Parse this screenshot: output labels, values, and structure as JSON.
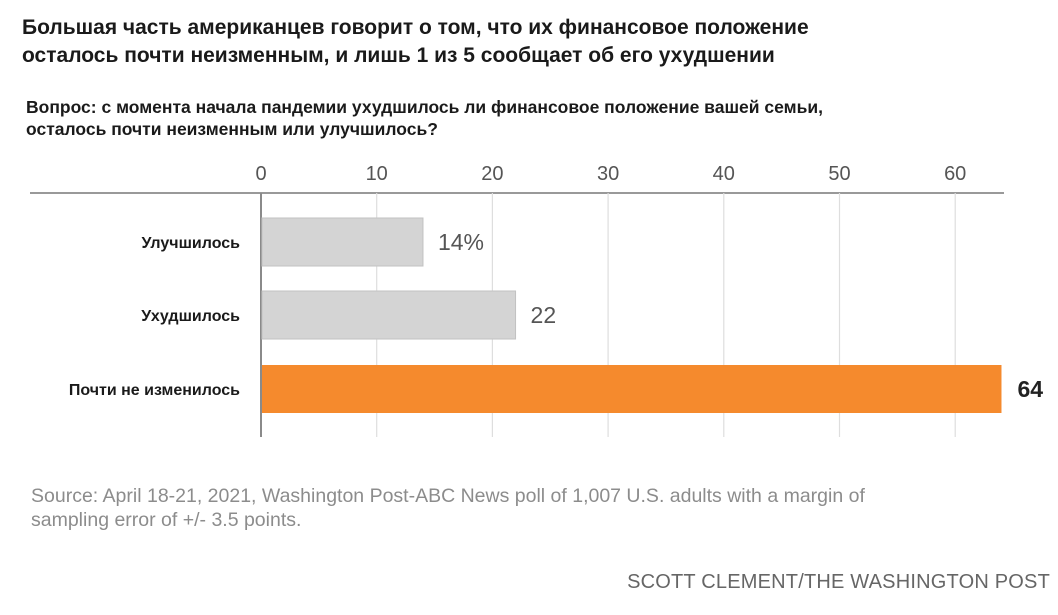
{
  "title_lines": [
    "Большая часть американцев говорит о том, что их финансовое положение",
    "осталось почти неизменным, и лишь 1 из 5 сообщает об его ухудшении"
  ],
  "question_lines": [
    "Вопрос: с момента начала пандемии ухудшилось ли финансовое положение вашей семьи,",
    "осталось почти неизменным или улучшилось?"
  ],
  "chart_data": {
    "type": "bar",
    "orientation": "horizontal",
    "categories": [
      "Улучшилось",
      "Ухудшилось",
      "Почти не изменилось"
    ],
    "values": [
      14,
      22,
      64
    ],
    "value_labels": [
      "14%",
      "22",
      "64"
    ],
    "xticks": [
      0,
      10,
      20,
      30,
      40,
      50,
      60
    ],
    "xtick_labels": [
      "0",
      "10",
      "20",
      "30",
      "40",
      "50",
      "60"
    ],
    "xlim": [
      0,
      64
    ],
    "grid": true,
    "colors": [
      "#d4d4d4",
      "#d4d4d4",
      "#f58a2d"
    ]
  },
  "source_lines": [
    "Source: April 18-21, 2021, Washington Post-ABC News poll of 1,007 U.S. adults with a margin of",
    "sampling error of +/- 3.5 points."
  ],
  "credit": "SCOTT CLEMENT/THE WASHINGTON POST"
}
